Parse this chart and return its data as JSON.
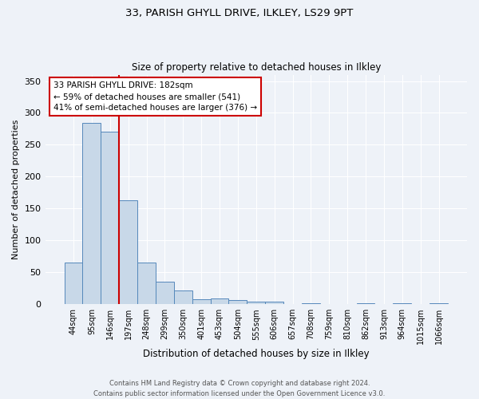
{
  "title1": "33, PARISH GHYLL DRIVE, ILKLEY, LS29 9PT",
  "title2": "Size of property relative to detached houses in Ilkley",
  "xlabel": "Distribution of detached houses by size in Ilkley",
  "ylabel": "Number of detached properties",
  "footnote": "Contains HM Land Registry data © Crown copyright and database right 2024.\nContains public sector information licensed under the Open Government Licence v3.0.",
  "bin_labels": [
    "44sqm",
    "95sqm",
    "146sqm",
    "197sqm",
    "248sqm",
    "299sqm",
    "350sqm",
    "401sqm",
    "453sqm",
    "504sqm",
    "555sqm",
    "606sqm",
    "657sqm",
    "708sqm",
    "759sqm",
    "810sqm",
    "862sqm",
    "913sqm",
    "964sqm",
    "1015sqm",
    "1066sqm"
  ],
  "bar_heights": [
    65,
    284,
    271,
    163,
    65,
    35,
    21,
    8,
    9,
    6,
    4,
    4,
    0,
    2,
    0,
    0,
    1,
    0,
    1,
    0,
    2
  ],
  "bar_color": "#c8d8e8",
  "bar_edge_color": "#5588bb",
  "vline_color": "#cc0000",
  "annotation_text": "33 PARISH GHYLL DRIVE: 182sqm\n← 59% of detached houses are smaller (541)\n41% of semi-detached houses are larger (376) →",
  "annotation_box_color": "#ffffff",
  "annotation_edge_color": "#cc0000",
  "ylim": [
    0,
    360
  ],
  "yticks": [
    0,
    50,
    100,
    150,
    200,
    250,
    300,
    350
  ],
  "bg_color": "#eef2f8",
  "grid_color": "#ffffff"
}
